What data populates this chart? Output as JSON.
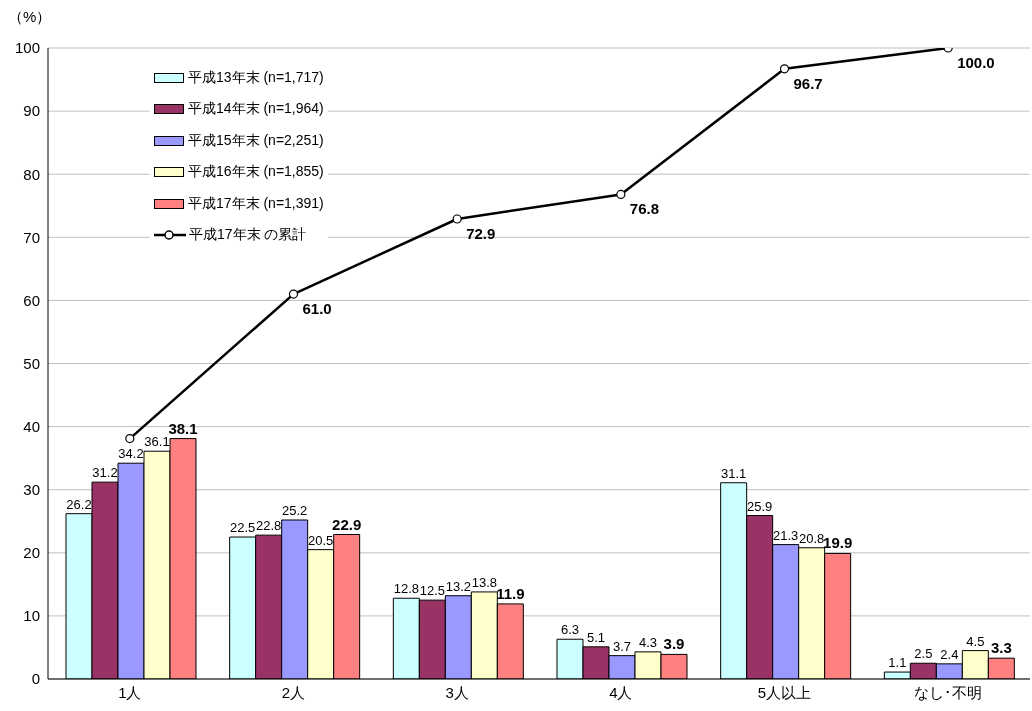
{
  "chart_data": {
    "type": "bar",
    "ylabel": "（%）",
    "categories": [
      "1人",
      "2人",
      "3人",
      "4人",
      "5人以上",
      "なし･不明"
    ],
    "series": [
      {
        "name": "平成13年末 (n=1,717)",
        "color": "#ccffff",
        "values": [
          26.2,
          22.5,
          12.8,
          6.3,
          31.1,
          1.1
        ],
        "value_labels": [
          "26.2",
          "22.5",
          "12.8",
          "6.3",
          "31.1",
          "1.1"
        ]
      },
      {
        "name": "平成14年末 (n=1,964)",
        "color": "#993366",
        "values": [
          31.2,
          22.8,
          12.5,
          5.1,
          25.9,
          2.5
        ],
        "value_labels": [
          "31.2",
          "22.8",
          "12.5",
          "5.1",
          "25.9",
          "2.5"
        ]
      },
      {
        "name": "平成15年末 (n=2,251)",
        "color": "#9999ff",
        "values": [
          34.2,
          25.2,
          13.2,
          3.7,
          21.3,
          2.4
        ],
        "value_labels": [
          "34.2",
          "25.2",
          "13.2",
          "3.7",
          "21.3",
          "2.4"
        ]
      },
      {
        "name": "平成16年末 (n=1,855)",
        "color": "#ffffcc",
        "values": [
          36.1,
          20.5,
          13.8,
          4.3,
          20.8,
          4.5
        ],
        "value_labels": [
          "36.1",
          "20.5",
          "13.8",
          "4.3",
          "20.8",
          "4.5"
        ]
      },
      {
        "name": "平成17年末 (n=1,391)",
        "color": "#ff8080",
        "values": [
          38.1,
          22.9,
          11.9,
          3.9,
          19.9,
          3.3
        ],
        "value_labels": [
          "38.1",
          "22.9",
          "11.9",
          "3.9",
          "19.9",
          "3.3"
        ]
      },
      {
        "name": "平成17年末 の累計",
        "type": "line",
        "color": "#000000",
        "marker": "circle",
        "values": [
          38.1,
          61.0,
          72.9,
          76.8,
          96.7,
          100.0
        ],
        "value_labels": [
          null,
          "61.0",
          "72.9",
          "76.8",
          "96.7",
          "100.0"
        ]
      }
    ],
    "ylim": [
      0,
      100
    ],
    "yticks": [
      0,
      10,
      20,
      30,
      40,
      50,
      60,
      70,
      80,
      90,
      100
    ],
    "grid": "y",
    "legend": "top left"
  }
}
